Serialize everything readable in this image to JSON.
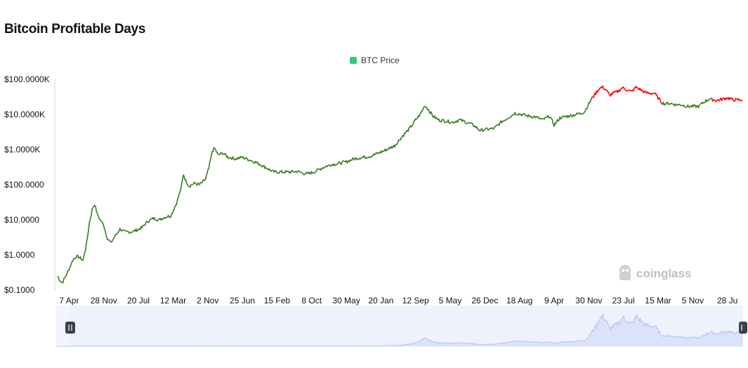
{
  "title": "Bitcoin Profitable Days",
  "legend": {
    "label": "BTC Price",
    "color": "#2ecc71"
  },
  "watermark": "coinglass",
  "colors": {
    "profit": "#3a7d24",
    "loss": "#ff0000",
    "navigator_fill": "#dbe3fb",
    "navigator_line": "#b3c2ef",
    "navigator_bg": "#eef2fd"
  },
  "chart_data": {
    "type": "line",
    "title": "Bitcoin Profitable Days",
    "y_scale": "log",
    "ylim": [
      0.1,
      100000
    ],
    "y_tick_values": [
      0.1,
      1,
      10,
      100,
      1000,
      10000,
      100000
    ],
    "y_tick_labels": [
      "$0.1000",
      "$1.0000",
      "$10.0000",
      "$100.0000",
      "$1.0000K",
      "$10.0000K",
      "$100.0000K"
    ],
    "x_tick_labels": [
      "7 Apr",
      "28 Nov",
      "20 Jul",
      "12 Mar",
      "2 Nov",
      "25 Jun",
      "15 Feb",
      "8 Oct",
      "30 May",
      "20 Jan",
      "12 Sep",
      "5 May",
      "26 Dec",
      "18 Aug",
      "9 Apr",
      "30 Nov",
      "23 Jul",
      "15 Mar",
      "5 Nov",
      "28 Ju"
    ],
    "x_tick_index": [
      1,
      4,
      7,
      10,
      13,
      16,
      19,
      22,
      25,
      28,
      31,
      34,
      37,
      40,
      43,
      46,
      49,
      52,
      55,
      58
    ],
    "x_range": [
      0,
      59.3
    ],
    "legend_position": "top-center",
    "grid": false,
    "series": [
      {
        "name": "BTC Price",
        "points": [
          [
            0,
            0.25
          ],
          [
            0.15,
            0.2
          ],
          [
            0.4,
            0.16
          ],
          [
            0.7,
            0.25
          ],
          [
            1,
            0.4
          ],
          [
            1.3,
            0.7
          ],
          [
            1.6,
            0.9
          ],
          [
            1.9,
            0.85
          ],
          [
            2.2,
            0.7
          ],
          [
            2.5,
            2
          ],
          [
            2.75,
            8
          ],
          [
            3.0,
            20
          ],
          [
            3.2,
            28
          ],
          [
            3.45,
            14
          ],
          [
            3.7,
            10
          ],
          [
            4.0,
            7
          ],
          [
            4.3,
            3
          ],
          [
            4.6,
            2.2
          ],
          [
            5.0,
            3.5
          ],
          [
            5.4,
            5.5
          ],
          [
            5.8,
            4.5
          ],
          [
            6.3,
            4.5
          ],
          [
            6.8,
            5
          ],
          [
            7.3,
            6
          ],
          [
            7.8,
            9
          ],
          [
            8.3,
            11
          ],
          [
            8.8,
            10
          ],
          [
            9.3,
            12
          ],
          [
            9.8,
            13
          ],
          [
            10.3,
            30
          ],
          [
            10.7,
            80
          ],
          [
            10.9,
            200
          ],
          [
            11.1,
            130
          ],
          [
            11.4,
            90
          ],
          [
            11.8,
            110
          ],
          [
            12.3,
            100
          ],
          [
            12.8,
            140
          ],
          [
            13.1,
            300
          ],
          [
            13.4,
            900
          ],
          [
            13.6,
            1100
          ],
          [
            13.9,
            700
          ],
          [
            14.3,
            800
          ],
          [
            14.8,
            600
          ],
          [
            15.4,
            550
          ],
          [
            16.0,
            600
          ],
          [
            16.7,
            500
          ],
          [
            17.4,
            400
          ],
          [
            18.1,
            300
          ],
          [
            18.7,
            230
          ],
          [
            19.4,
            230
          ],
          [
            20.1,
            230
          ],
          [
            20.8,
            240
          ],
          [
            21.5,
            200
          ],
          [
            22.2,
            230
          ],
          [
            22.9,
            300
          ],
          [
            23.6,
            370
          ],
          [
            24.3,
            400
          ],
          [
            25.0,
            450
          ],
          [
            25.7,
            550
          ],
          [
            26.4,
            600
          ],
          [
            27.1,
            650
          ],
          [
            27.8,
            800
          ],
          [
            28.5,
            1000
          ],
          [
            29.2,
            1300
          ],
          [
            29.9,
            2500
          ],
          [
            30.5,
            4000
          ],
          [
            31.0,
            7000
          ],
          [
            31.4,
            10000
          ],
          [
            31.8,
            18000
          ],
          [
            32.1,
            14000
          ],
          [
            32.5,
            9000
          ],
          [
            33.0,
            7000
          ],
          [
            33.6,
            6500
          ],
          [
            34.2,
            6000
          ],
          [
            34.8,
            7000
          ],
          [
            35.4,
            6000
          ],
          [
            36.0,
            5000
          ],
          [
            36.6,
            3500
          ],
          [
            37.2,
            3800
          ],
          [
            37.8,
            4000
          ],
          [
            38.4,
            6000
          ],
          [
            39.0,
            8000
          ],
          [
            39.6,
            11000
          ],
          [
            40.2,
            10000
          ],
          [
            40.8,
            9000
          ],
          [
            41.4,
            8500
          ],
          [
            42.0,
            7000
          ],
          [
            42.6,
            9000
          ],
          [
            43.0,
            5000
          ],
          [
            43.5,
            8000
          ],
          [
            44.2,
            9000
          ],
          [
            44.9,
            10000
          ],
          [
            45.6,
            11500
          ],
          [
            46.0,
            20000
          ],
          [
            46.3,
            30000
          ],
          [
            46.6,
            40000
          ],
          [
            46.9,
            55000
          ],
          [
            47.2,
            60000
          ],
          [
            47.5,
            50000
          ],
          [
            47.8,
            35000
          ],
          [
            48.1,
            40000
          ],
          [
            48.5,
            45000
          ],
          [
            48.9,
            58000
          ],
          [
            49.3,
            50000
          ],
          [
            49.7,
            45000
          ],
          [
            50.1,
            60000
          ],
          [
            50.5,
            50000
          ],
          [
            50.9,
            42000
          ],
          [
            51.3,
            40000
          ],
          [
            51.7,
            40000
          ],
          [
            52.0,
            30000
          ],
          [
            52.3,
            22000
          ],
          [
            52.6,
            20000
          ],
          [
            53.0,
            21000
          ],
          [
            53.5,
            19000
          ],
          [
            54.0,
            19000
          ],
          [
            54.5,
            17000
          ],
          [
            55.0,
            17000
          ],
          [
            55.5,
            17000
          ],
          [
            56.0,
            23000
          ],
          [
            56.5,
            28000
          ],
          [
            57.0,
            25000
          ],
          [
            57.5,
            27000
          ],
          [
            58.0,
            30000
          ],
          [
            58.5,
            26000
          ],
          [
            59.3,
            26000
          ]
        ],
        "segments": [
          {
            "from": 0,
            "to": 46.3,
            "color": "#3a7d24"
          },
          {
            "from": 46.3,
            "to": 52.3,
            "color": "#ff0000"
          },
          {
            "from": 52.3,
            "to": 55.6,
            "color": "#3a7d24"
          },
          {
            "from": 55.6,
            "to": 56.6,
            "color": "#3a7d24"
          },
          {
            "from": 56.6,
            "to": 59.3,
            "color": "#ff0000"
          }
        ]
      }
    ]
  }
}
